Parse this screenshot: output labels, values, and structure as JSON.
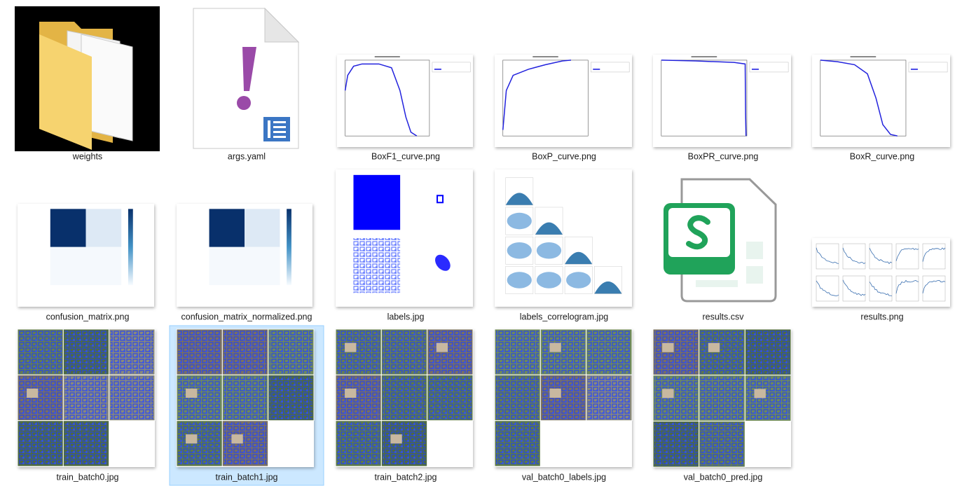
{
  "files": [
    {
      "name": "weights"
    },
    {
      "name": "args.yaml"
    },
    {
      "name": "BoxF1_curve.png"
    },
    {
      "name": "BoxP_curve.png"
    },
    {
      "name": "BoxPR_curve.png"
    },
    {
      "name": "BoxR_curve.png"
    },
    {
      "name": "confusion_matrix.png"
    },
    {
      "name": "confusion_matrix_normalized.png"
    },
    {
      "name": "labels.jpg"
    },
    {
      "name": "labels_correlogram.jpg"
    },
    {
      "name": "results.csv"
    },
    {
      "name": "results.png"
    },
    {
      "name": "train_batch0.jpg"
    },
    {
      "name": "train_batch1.jpg"
    },
    {
      "name": "train_batch2.jpg"
    },
    {
      "name": "val_batch0_labels.jpg"
    },
    {
      "name": "val_batch0_pred.jpg"
    }
  ]
}
